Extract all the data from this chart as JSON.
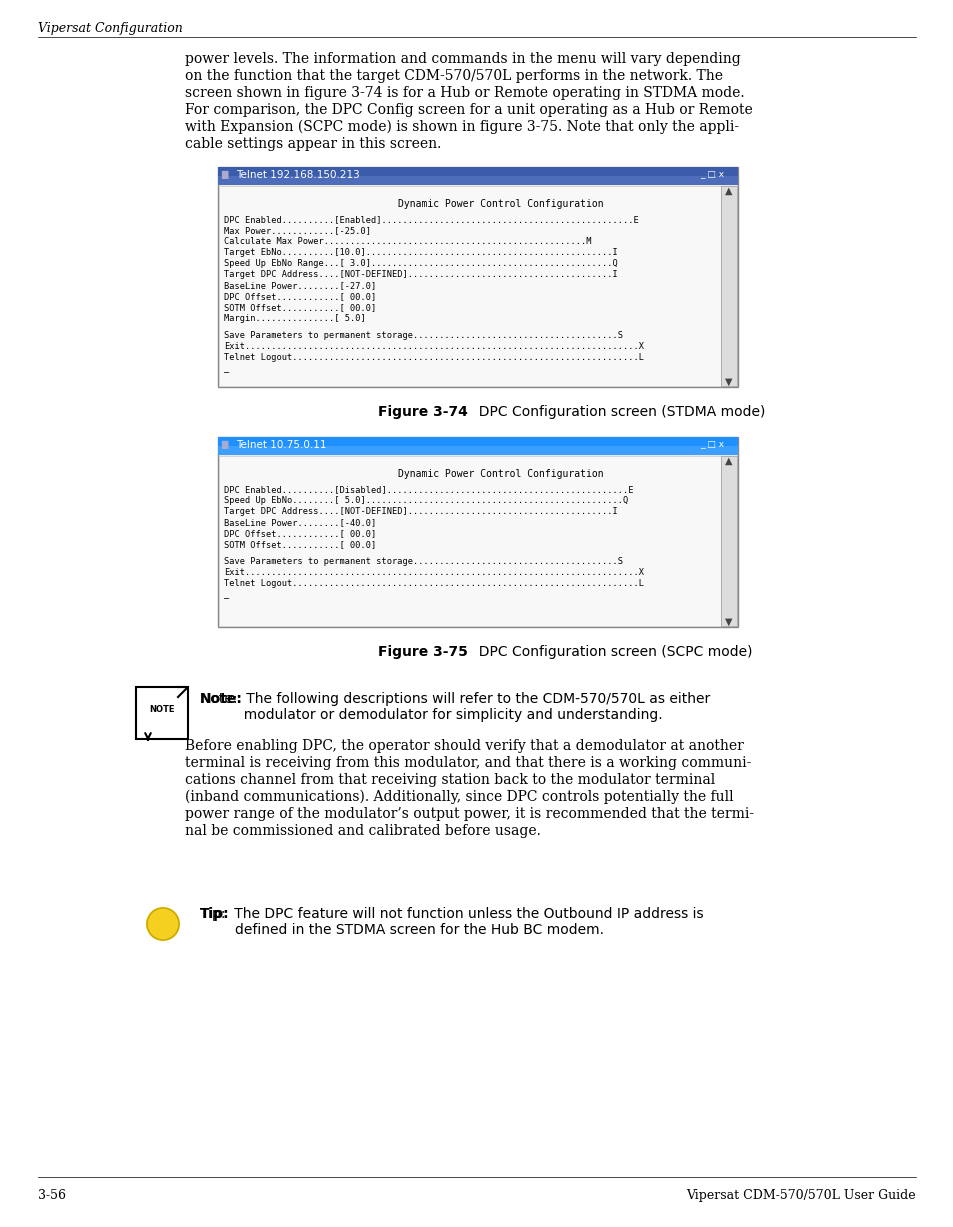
{
  "page_bg": "#ffffff",
  "header_text": "Vipersat Configuration",
  "footer_left": "3-56",
  "footer_right": "Vipersat CDM-570/570L User Guide",
  "intro_paragraph": "power levels. The information and commands in the menu will vary depending on the function that the target CDM-570/570L performs in the network. The screen shown in figure 3-74 is for a Hub or Remote operating in STDMA mode. For comparison, the DPC Config screen for a unit operating as a Hub or Remote with Expansion (SCPC mode) is shown in figure 3-75. Note that only the appli-cable settings appear in this screen.",
  "fig74_title_bar": "Telnet 192.168.150.213",
  "fig74_header": "Dynamic Power Control Configuration",
  "fig74_lines": [
    "DPC Enabled..........[Enabled]................................................E",
    "Max Power............[-25.0]",
    "Calculate Max Power..................................................M",
    "Target EbNo..........[10.0]...............................................I",
    "Speed Up EbNo Range...[ 3.0]..............................................Q",
    "Target DPC Address....[NOT-DEFINED].......................................I",
    "BaseLine Power........[-27.0]",
    "DPC Offset............[ 00.0]",
    "SOTM Offset...........[ 00.0]",
    "Margin...............[ 5.0]"
  ],
  "fig74_footer_lines": [
    "Save Parameters to permanent storage.......................................S",
    "Exit...........................................................................X",
    "Telnet Logout..................................................................L"
  ],
  "fig74_caption_bold": "Figure 3-74",
  "fig74_caption_rest": "  DPC Configuration screen (STDMA mode)",
  "fig75_title_bar": "Telnet 10.75.0.11",
  "fig75_header": "Dynamic Power Control Configuration",
  "fig75_lines": [
    "DPC Enabled..........[Disabled]..............................................E",
    "Speed Up EbNo........[ 5.0].................................................Q",
    "Target DPC Address....[NOT-DEFINED].......................................I",
    "BaseLine Power........[-40.0]",
    "DPC Offset............[ 00.0]",
    "SOTM Offset...........[ 00.0]"
  ],
  "fig75_footer_lines": [
    "Save Parameters to permanent storage.......................................S",
    "Exit...........................................................................X",
    "Telnet Logout..................................................................L"
  ],
  "fig75_caption_bold": "Figure 3-75",
  "fig75_caption_rest": "  DPC Configuration screen (SCPC mode)",
  "note_text": "Note:  The following descriptions will refer to the CDM-570/570L as either modulator or demodulator for simplicity and understanding.",
  "body_paragraph": "Before enabling DPC, the operator should verify that a demodulator at another terminal is receiving from this modulator, and that there is a working communi-cations channel from that receiving station back to the modulator terminal (inband communications). Additionally, since DPC controls potentially the full power range of the modulator’s output power, it is recommended that the termi-nal be commissioned and calibrated before usage.",
  "tip_text": "Tip:  The DPC feature will not function unless the Outbound IP address is defined in the STDMA screen for the Hub BC modem.",
  "title_bar_color": "#4a6fa5",
  "title_bar_color2": "#1e4fa5",
  "window_bg": "#f0f0f0",
  "terminal_bg": "#ffffff",
  "terminal_font_color": "#000000"
}
